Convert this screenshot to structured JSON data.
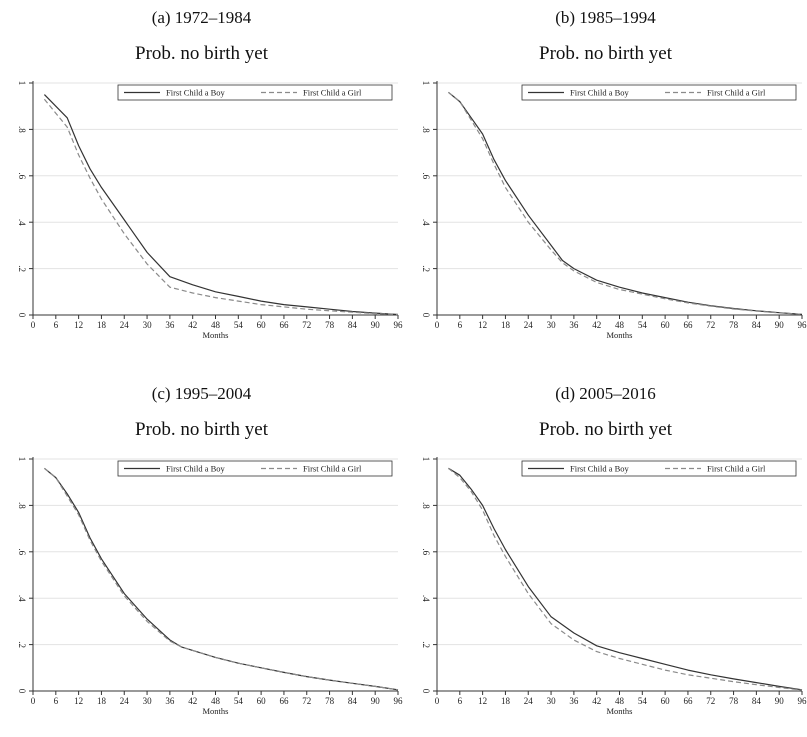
{
  "chart_data": [
    {
      "type": "line",
      "caption": "(a) 1972–1984",
      "title": "Prob. no birth yet",
      "xlabel": "Months",
      "ylabel": "",
      "xlim": [
        0,
        96
      ],
      "ylim": [
        0,
        1
      ],
      "xticks": [
        "0",
        "6",
        "12",
        "18",
        "24",
        "30",
        "36",
        "42",
        "48",
        "54",
        "60",
        "66",
        "72",
        "78",
        "84",
        "90",
        "96"
      ],
      "yticks": [
        "0",
        ".2",
        ".4",
        ".6",
        ".8",
        "1"
      ],
      "grid": true,
      "legend_position": "top-right",
      "series": [
        {
          "name": "First Child a Boy",
          "style": "solid",
          "color": "#333333",
          "x": [
            3,
            6,
            9,
            12,
            15,
            18,
            24,
            30,
            36,
            42,
            48,
            54,
            60,
            66,
            72,
            78,
            84,
            90,
            96
          ],
          "y": [
            0.95,
            0.9,
            0.85,
            0.73,
            0.63,
            0.55,
            0.41,
            0.27,
            0.165,
            0.13,
            0.1,
            0.08,
            0.06,
            0.045,
            0.035,
            0.025,
            0.015,
            0.008,
            0.002
          ]
        },
        {
          "name": "First Child a Girl",
          "style": "dashed",
          "color": "#8a8a8a",
          "x": [
            3,
            6,
            9,
            12,
            15,
            18,
            24,
            30,
            36,
            42,
            48,
            54,
            60,
            66,
            72,
            78,
            84,
            90,
            96
          ],
          "y": [
            0.93,
            0.87,
            0.81,
            0.69,
            0.59,
            0.5,
            0.35,
            0.22,
            0.12,
            0.095,
            0.075,
            0.06,
            0.045,
            0.035,
            0.025,
            0.018,
            0.012,
            0.006,
            0.002
          ]
        }
      ]
    },
    {
      "type": "line",
      "caption": "(b) 1985–1994",
      "title": "Prob. no birth yet",
      "xlabel": "Months",
      "ylabel": "",
      "xlim": [
        0,
        96
      ],
      "ylim": [
        0,
        1
      ],
      "xticks": [
        "0",
        "6",
        "12",
        "18",
        "24",
        "30",
        "36",
        "42",
        "48",
        "54",
        "60",
        "66",
        "72",
        "78",
        "84",
        "90",
        "96"
      ],
      "yticks": [
        "0",
        ".2",
        ".4",
        ".6",
        ".8",
        "1"
      ],
      "grid": true,
      "legend_position": "top-right",
      "series": [
        {
          "name": "First Child a Boy",
          "style": "solid",
          "color": "#333333",
          "x": [
            3,
            6,
            9,
            12,
            15,
            18,
            24,
            30,
            33,
            36,
            42,
            48,
            54,
            60,
            66,
            72,
            78,
            84,
            90,
            96
          ],
          "y": [
            0.96,
            0.92,
            0.85,
            0.78,
            0.67,
            0.58,
            0.43,
            0.3,
            0.235,
            0.2,
            0.15,
            0.12,
            0.095,
            0.075,
            0.055,
            0.04,
            0.028,
            0.018,
            0.01,
            0.003
          ]
        },
        {
          "name": "First Child a Girl",
          "style": "dashed",
          "color": "#8a8a8a",
          "x": [
            3,
            6,
            9,
            12,
            15,
            18,
            24,
            30,
            33,
            36,
            42,
            48,
            54,
            60,
            66,
            72,
            78,
            84,
            90,
            96
          ],
          "y": [
            0.96,
            0.92,
            0.84,
            0.76,
            0.65,
            0.55,
            0.4,
            0.28,
            0.225,
            0.19,
            0.14,
            0.11,
            0.09,
            0.07,
            0.052,
            0.038,
            0.026,
            0.017,
            0.009,
            0.003
          ]
        }
      ]
    },
    {
      "type": "line",
      "caption": "(c) 1995–2004",
      "title": "Prob. no birth yet",
      "xlabel": "Months",
      "ylabel": "",
      "xlim": [
        0,
        96
      ],
      "ylim": [
        0,
        1
      ],
      "xticks": [
        "0",
        "6",
        "12",
        "18",
        "24",
        "30",
        "36",
        "42",
        "48",
        "54",
        "60",
        "66",
        "72",
        "78",
        "84",
        "90",
        "96"
      ],
      "yticks": [
        "0",
        ".2",
        ".4",
        ".6",
        ".8",
        "1"
      ],
      "grid": true,
      "legend_position": "top-right",
      "series": [
        {
          "name": "First Child a Boy",
          "style": "solid",
          "color": "#333333",
          "x": [
            3,
            6,
            9,
            12,
            15,
            18,
            24,
            30,
            36,
            39,
            42,
            48,
            54,
            60,
            66,
            72,
            78,
            84,
            90,
            96
          ],
          "y": [
            0.96,
            0.92,
            0.85,
            0.77,
            0.66,
            0.57,
            0.42,
            0.31,
            0.22,
            0.19,
            0.175,
            0.145,
            0.12,
            0.1,
            0.08,
            0.062,
            0.047,
            0.033,
            0.02,
            0.005
          ]
        },
        {
          "name": "First Child a Girl",
          "style": "dashed",
          "color": "#8a8a8a",
          "x": [
            3,
            6,
            9,
            12,
            15,
            18,
            24,
            30,
            36,
            39,
            42,
            48,
            54,
            60,
            66,
            72,
            78,
            84,
            90,
            96
          ],
          "y": [
            0.96,
            0.92,
            0.84,
            0.76,
            0.65,
            0.56,
            0.41,
            0.3,
            0.215,
            0.19,
            0.175,
            0.145,
            0.12,
            0.1,
            0.08,
            0.062,
            0.047,
            0.033,
            0.02,
            0.005
          ]
        }
      ]
    },
    {
      "type": "line",
      "caption": "(d) 2005–2016",
      "title": "Prob. no birth yet",
      "xlabel": "Months",
      "ylabel": "",
      "xlim": [
        0,
        96
      ],
      "ylim": [
        0,
        1
      ],
      "xticks": [
        "0",
        "6",
        "12",
        "18",
        "24",
        "30",
        "36",
        "42",
        "48",
        "54",
        "60",
        "66",
        "72",
        "78",
        "84",
        "90",
        "96"
      ],
      "yticks": [
        "0",
        ".2",
        ".4",
        ".6",
        ".8",
        "1"
      ],
      "grid": true,
      "legend_position": "top-right",
      "series": [
        {
          "name": "First Child a Boy",
          "style": "solid",
          "color": "#333333",
          "x": [
            3,
            6,
            9,
            12,
            15,
            18,
            24,
            30,
            36,
            42,
            48,
            54,
            60,
            66,
            72,
            78,
            84,
            90,
            96
          ],
          "y": [
            0.96,
            0.93,
            0.87,
            0.8,
            0.7,
            0.61,
            0.45,
            0.32,
            0.25,
            0.195,
            0.165,
            0.14,
            0.115,
            0.09,
            0.07,
            0.052,
            0.036,
            0.02,
            0.005
          ]
        },
        {
          "name": "First Child a Girl",
          "style": "dashed",
          "color": "#8a8a8a",
          "x": [
            3,
            6,
            9,
            12,
            15,
            18,
            24,
            30,
            36,
            42,
            48,
            54,
            60,
            66,
            72,
            78,
            84,
            90,
            96
          ],
          "y": [
            0.96,
            0.92,
            0.86,
            0.78,
            0.67,
            0.58,
            0.42,
            0.29,
            0.22,
            0.17,
            0.14,
            0.115,
            0.09,
            0.07,
            0.055,
            0.04,
            0.027,
            0.015,
            0.004
          ]
        }
      ]
    }
  ]
}
